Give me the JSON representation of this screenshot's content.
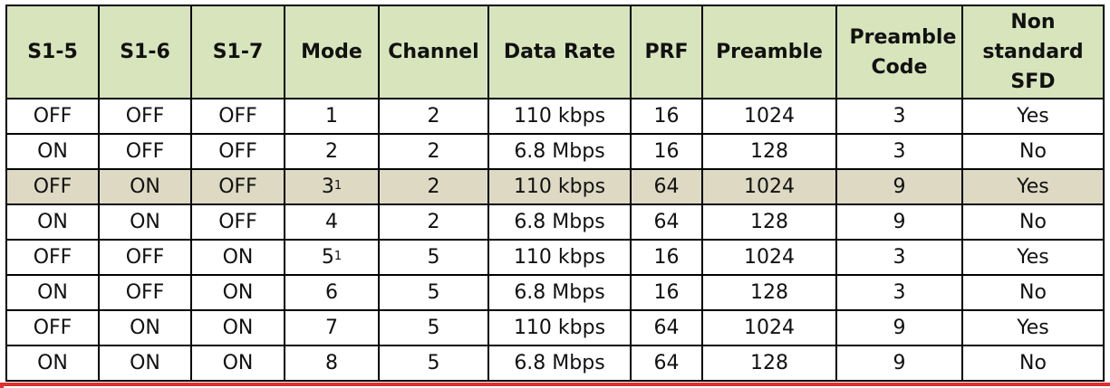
{
  "table": {
    "headers": [
      "S1-5",
      "S1-6",
      "S1-7",
      "Mode",
      "Channel",
      "Data Rate",
      "PRF",
      "Preamble",
      "Preamble Code",
      "Non standard SFD"
    ],
    "rows": [
      {
        "cells": [
          "OFF",
          "OFF",
          "OFF",
          "1",
          "2",
          "110 kbps",
          "16",
          "1024",
          "3",
          "Yes"
        ],
        "mode_note": ""
      },
      {
        "cells": [
          "ON",
          "OFF",
          "OFF",
          "2",
          "2",
          "6.8 Mbps",
          "16",
          "128",
          "3",
          "No"
        ],
        "mode_note": ""
      },
      {
        "cells": [
          "OFF",
          "ON",
          "OFF",
          "3",
          "2",
          "110 kbps",
          "64",
          "1024",
          "9",
          "Yes"
        ],
        "mode_note": "1"
      },
      {
        "cells": [
          "ON",
          "ON",
          "OFF",
          "4",
          "2",
          "6.8 Mbps",
          "64",
          "128",
          "9",
          "No"
        ],
        "mode_note": ""
      },
      {
        "cells": [
          "OFF",
          "OFF",
          "ON",
          "5",
          "5",
          "110 kbps",
          "16",
          "1024",
          "3",
          "Yes"
        ],
        "mode_note": "1"
      },
      {
        "cells": [
          "ON",
          "OFF",
          "ON",
          "6",
          "5",
          "6.8 Mbps",
          "16",
          "128",
          "3",
          "No"
        ],
        "mode_note": ""
      },
      {
        "cells": [
          "OFF",
          "ON",
          "ON",
          "7",
          "5",
          "110 kbps",
          "64",
          "1024",
          "9",
          "Yes"
        ],
        "mode_note": ""
      },
      {
        "cells": [
          "ON",
          "ON",
          "ON",
          "8",
          "5",
          "6.8 Mbps",
          "64",
          "128",
          "9",
          "No"
        ],
        "mode_note": ""
      }
    ],
    "highlighted_row": 2
  },
  "colors": {
    "header_bg": "#d8e4bc",
    "highlight_row_bg": "#ddd9c3",
    "border": "#000000",
    "selection_outline": "#e03030"
  }
}
